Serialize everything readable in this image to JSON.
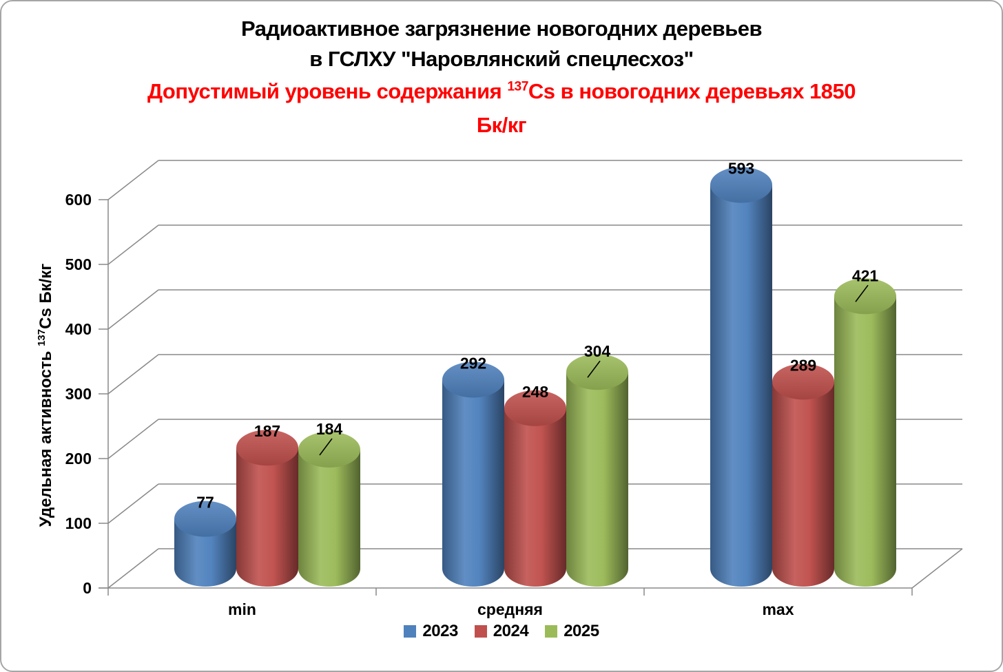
{
  "title": {
    "line1": "Радиоактивное загрязнение новогодних деревьев",
    "line2": "в ГСЛХУ \"Наровлянский спецлесхоз\""
  },
  "subtitle": {
    "prefix": "Допустимый уровень содержания ",
    "isotope": "137",
    "rest": "Cs в новогодних деревьях 1850",
    "line2": "Бк/кг",
    "color": "#ff0000"
  },
  "chart_data": {
    "type": "bar",
    "style": "3d-cylinder",
    "categories": [
      "min",
      "средняя",
      "max"
    ],
    "series": [
      {
        "name": "2023",
        "color": "#4F81BD",
        "values": [
          77,
          292,
          593
        ]
      },
      {
        "name": "2024",
        "color": "#C0504D",
        "values": [
          187,
          248,
          289
        ]
      },
      {
        "name": "2025",
        "color": "#9BBB59",
        "values": [
          184,
          304,
          421
        ]
      }
    ],
    "ylabel": {
      "prefix": "Удельная активность ",
      "isotope": "137",
      "suffix": "Cs Бк/кг"
    },
    "ylim": [
      0,
      600
    ],
    "ytick_step": 100,
    "grid": true,
    "legend_position": "bottom",
    "data_labels": true
  },
  "colors": {
    "grid": "#898989",
    "axis_text": "#000000",
    "label_text": "#000000",
    "background": "#ffffff"
  }
}
